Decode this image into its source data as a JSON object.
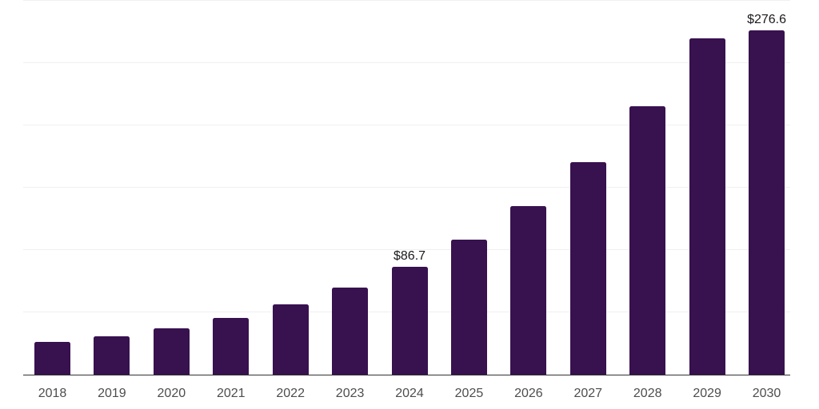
{
  "chart_data": {
    "type": "bar",
    "categories": [
      "2018",
      "2019",
      "2020",
      "2021",
      "2022",
      "2023",
      "2024",
      "2025",
      "2026",
      "2027",
      "2028",
      "2029",
      "2030"
    ],
    "values": [
      26.0,
      31.0,
      37.4,
      45.8,
      56.4,
      70.0,
      86.7,
      108.5,
      135.2,
      170.3,
      215.3,
      269.7,
      276.6
    ],
    "data_labels": [
      "",
      "",
      "",
      "",
      "",
      "",
      "$86.7",
      "",
      "",
      "",
      "",
      "",
      "$276.6"
    ],
    "ylim": [
      0,
      300
    ],
    "gridline_interval": 50,
    "grid": true,
    "legend": false,
    "y_tick_labels_visible": false,
    "colors": {
      "bar": "#38114F",
      "grid_line": "#f0f0f0",
      "axis_line": "#323232",
      "tick_label": "#4d4d4d",
      "data_label": "#1a1a1a",
      "background": "#ffffff"
    }
  }
}
